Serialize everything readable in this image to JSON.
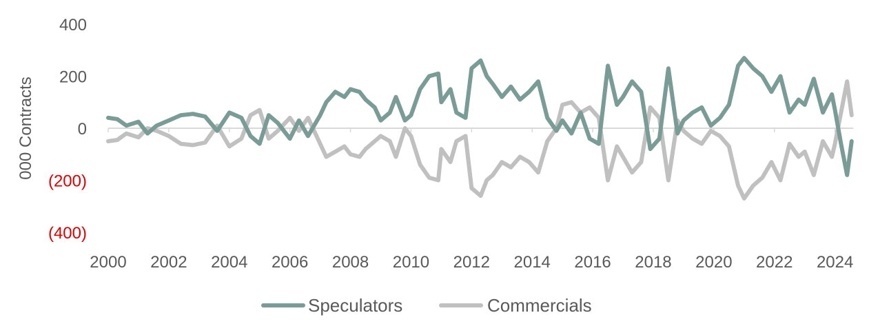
{
  "chart_data": {
    "type": "line",
    "title": "",
    "xlabel": "",
    "ylabel": "000 Contracts",
    "xlim": [
      2000,
      2024.6
    ],
    "ylim": [
      -400,
      400
    ],
    "grid": false,
    "legend_position": "bottom",
    "x_tick_labels": [
      "2000",
      "2002",
      "2004",
      "2006",
      "2008",
      "2010",
      "2012",
      "2014",
      "2016",
      "2018",
      "2020",
      "2022",
      "2024"
    ],
    "x_tick_values": [
      2000,
      2002,
      2004,
      2006,
      2008,
      2010,
      2012,
      2014,
      2016,
      2018,
      2020,
      2022,
      2024
    ],
    "y_ticks": [
      {
        "value": 400,
        "label": "400",
        "negative": false
      },
      {
        "value": 200,
        "label": "200",
        "negative": false
      },
      {
        "value": 0,
        "label": "0",
        "negative": false
      },
      {
        "value": -200,
        "label": "(200)",
        "negative": true
      },
      {
        "value": -400,
        "label": "(400)",
        "negative": true
      }
    ],
    "negative_label_color": "#e00000",
    "series": [
      {
        "name": "Speculators",
        "color": "#7a9c96",
        "x": [
          2000,
          2000.3,
          2000.6,
          2001,
          2001.3,
          2001.6,
          2002,
          2002.4,
          2002.8,
          2003.2,
          2003.6,
          2004,
          2004.4,
          2004.7,
          2005,
          2005.3,
          2005.6,
          2006,
          2006.3,
          2006.6,
          2007,
          2007.2,
          2007.5,
          2007.8,
          2008,
          2008.3,
          2008.5,
          2008.8,
          2009,
          2009.3,
          2009.5,
          2009.8,
          2010,
          2010.3,
          2010.6,
          2010.9,
          2011,
          2011.3,
          2011.5,
          2011.8,
          2012,
          2012.3,
          2012.5,
          2012.7,
          2013,
          2013.3,
          2013.6,
          2013.9,
          2014.2,
          2014.5,
          2014.8,
          2015,
          2015.3,
          2015.6,
          2015.9,
          2016.2,
          2016.5,
          2016.8,
          2017,
          2017.3,
          2017.6,
          2017.9,
          2018.2,
          2018.5,
          2018.8,
          2019,
          2019.3,
          2019.6,
          2019.9,
          2020.2,
          2020.5,
          2020.8,
          2021,
          2021.3,
          2021.6,
          2021.9,
          2022.2,
          2022.5,
          2022.8,
          2023,
          2023.3,
          2023.6,
          2023.9,
          2024,
          2024.2,
          2024.4,
          2024.55
        ],
        "y": [
          40,
          35,
          10,
          25,
          -20,
          10,
          30,
          50,
          55,
          45,
          -10,
          60,
          40,
          -30,
          -60,
          50,
          20,
          -40,
          30,
          -30,
          50,
          100,
          140,
          120,
          150,
          140,
          110,
          80,
          30,
          60,
          120,
          30,
          50,
          150,
          200,
          210,
          100,
          150,
          60,
          40,
          230,
          260,
          200,
          170,
          120,
          160,
          110,
          140,
          180,
          40,
          -10,
          30,
          -20,
          60,
          -40,
          -60,
          240,
          90,
          120,
          180,
          140,
          -80,
          -40,
          230,
          -20,
          30,
          60,
          80,
          10,
          40,
          90,
          240,
          270,
          230,
          200,
          140,
          200,
          60,
          110,
          90,
          190,
          60,
          130,
          70,
          -60,
          -180,
          -50
        ]
      },
      {
        "name": "Commercials",
        "color": "#c0c0c0",
        "x": [
          2000,
          2000.3,
          2000.6,
          2001,
          2001.3,
          2001.6,
          2002,
          2002.4,
          2002.8,
          2003.2,
          2003.6,
          2004,
          2004.4,
          2004.7,
          2005,
          2005.3,
          2005.6,
          2006,
          2006.3,
          2006.6,
          2007,
          2007.2,
          2007.5,
          2007.8,
          2008,
          2008.3,
          2008.5,
          2008.8,
          2009,
          2009.3,
          2009.5,
          2009.8,
          2010,
          2010.3,
          2010.6,
          2010.9,
          2011,
          2011.3,
          2011.5,
          2011.8,
          2012,
          2012.3,
          2012.5,
          2012.7,
          2013,
          2013.3,
          2013.6,
          2013.9,
          2014.2,
          2014.5,
          2014.8,
          2015,
          2015.3,
          2015.6,
          2015.9,
          2016.2,
          2016.5,
          2016.8,
          2017,
          2017.3,
          2017.6,
          2017.9,
          2018.2,
          2018.5,
          2018.8,
          2019,
          2019.3,
          2019.6,
          2019.9,
          2020.2,
          2020.5,
          2020.8,
          2021,
          2021.3,
          2021.6,
          2021.9,
          2022.2,
          2022.5,
          2022.8,
          2023,
          2023.3,
          2023.6,
          2023.9,
          2024,
          2024.2,
          2024.4,
          2024.55
        ],
        "y": [
          -50,
          -45,
          -20,
          -35,
          0,
          -10,
          -30,
          -60,
          -65,
          -55,
          10,
          -70,
          -40,
          50,
          70,
          -40,
          -10,
          40,
          -10,
          40,
          -60,
          -110,
          -90,
          -70,
          -100,
          -110,
          -80,
          -50,
          -30,
          -50,
          -110,
          0,
          -30,
          -140,
          -190,
          -200,
          -80,
          -130,
          -50,
          -30,
          -230,
          -260,
          -200,
          -180,
          -130,
          -150,
          -110,
          -130,
          -170,
          -50,
          0,
          90,
          100,
          60,
          80,
          40,
          -200,
          -70,
          -110,
          -170,
          -130,
          80,
          40,
          -200,
          30,
          -10,
          -40,
          -60,
          -10,
          -30,
          -70,
          -220,
          -270,
          -220,
          -190,
          -130,
          -200,
          -60,
          -110,
          -90,
          -180,
          -50,
          -110,
          -60,
          60,
          180,
          50
        ]
      }
    ]
  }
}
